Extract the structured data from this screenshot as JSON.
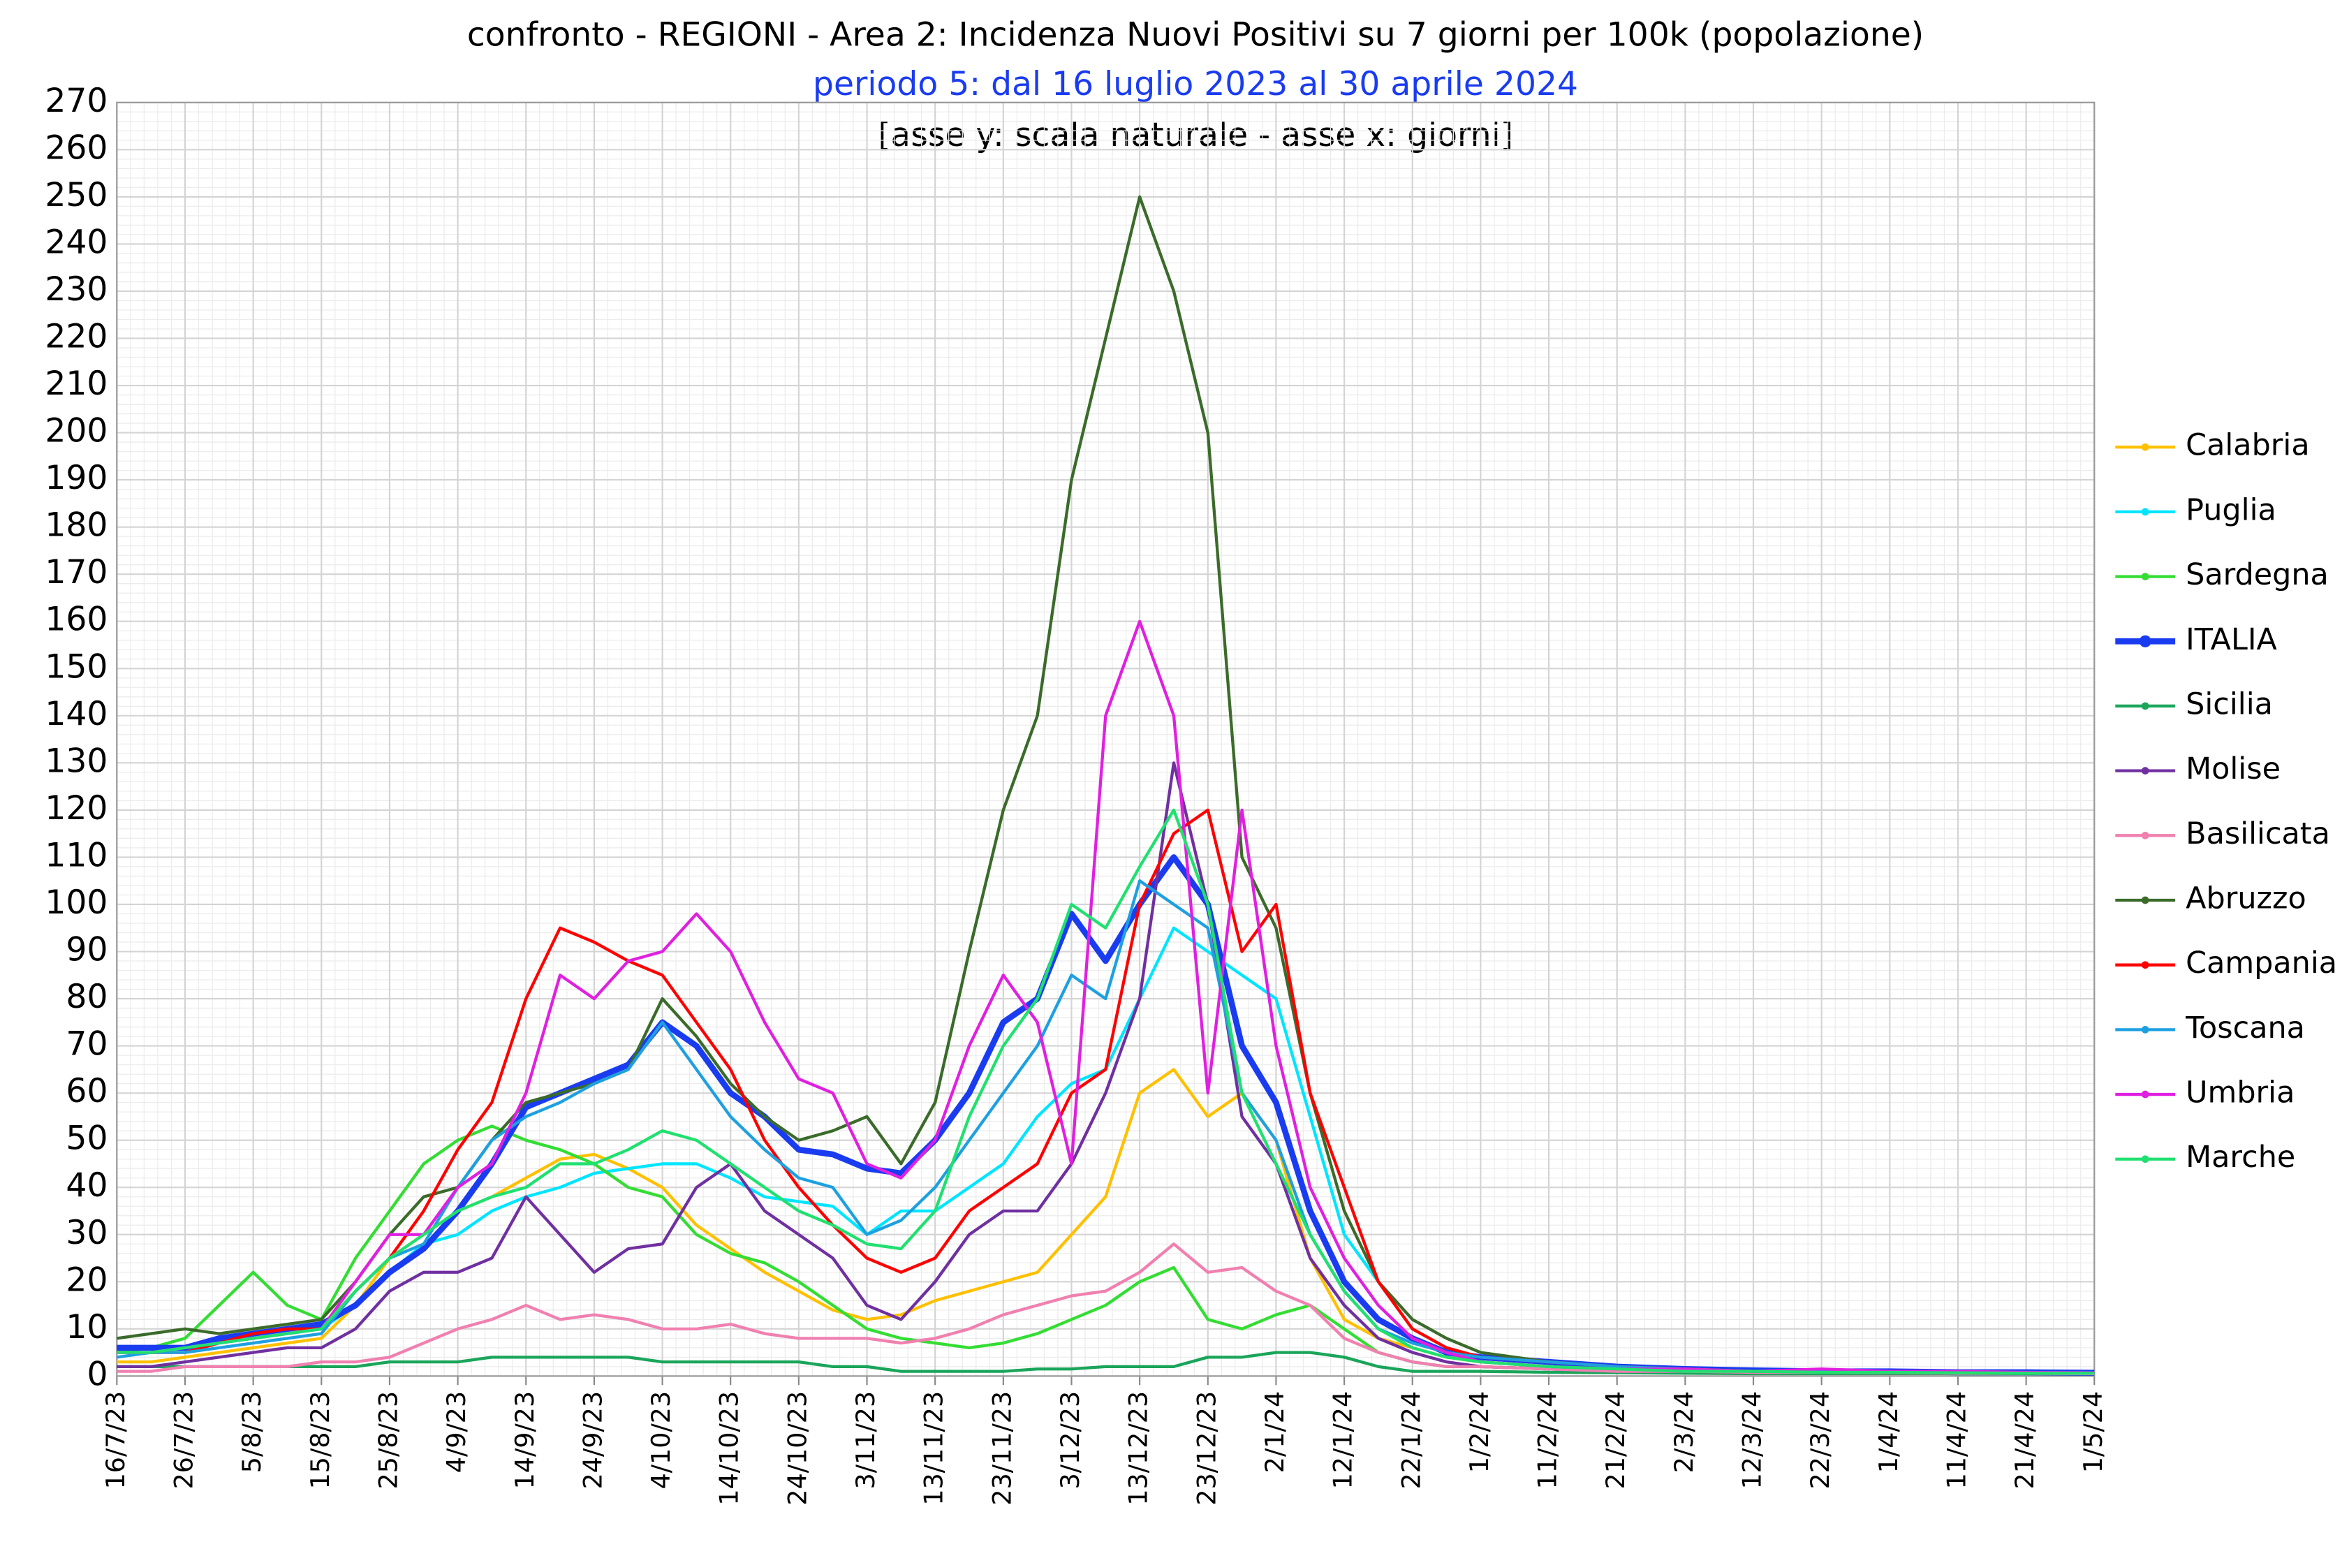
{
  "chart_data": {
    "type": "line",
    "title": "confronto - REGIONI - Area 2: Incidenza Nuovi Positivi su 7 giorni per 100k (popolazione)",
    "subtitle": "periodo 5: dal 16 luglio 2023 al 30 aprile 2024",
    "note": "[asse y: scala naturale - asse x:  giorni]",
    "x": [
      "16/7/23",
      "21/7/23",
      "26/7/23",
      "31/7/23",
      "5/8/23",
      "10/8/23",
      "15/8/23",
      "20/8/23",
      "25/8/23",
      "30/8/23",
      "4/9/23",
      "9/9/23",
      "14/9/23",
      "19/9/23",
      "24/9/23",
      "29/9/23",
      "4/10/23",
      "9/10/23",
      "14/10/23",
      "19/10/23",
      "24/10/23",
      "29/10/23",
      "3/11/23",
      "8/11/23",
      "13/11/23",
      "18/11/23",
      "23/11/23",
      "28/11/23",
      "3/12/23",
      "8/12/23",
      "13/12/23",
      "18/12/23",
      "23/12/23",
      "28/12/23",
      "2/1/24",
      "7/1/24",
      "12/1/24",
      "17/1/24",
      "22/1/24",
      "27/1/24",
      "1/2/24",
      "11/2/24",
      "21/2/24",
      "2/3/24",
      "12/3/24",
      "22/3/24",
      "1/4/24",
      "11/4/24",
      "21/4/24",
      "1/5/24"
    ],
    "xlim": [
      "16/7/23",
      "1/5/24"
    ],
    "xticks": [
      "16/7/23",
      "26/7/23",
      "5/8/23",
      "15/8/23",
      "25/8/23",
      "4/9/23",
      "14/9/23",
      "24/9/23",
      "4/10/23",
      "14/10/23",
      "24/10/23",
      "3/11/23",
      "13/11/23",
      "23/11/23",
      "3/12/23",
      "13/12/23",
      "23/12/23",
      "2/1/24",
      "12/1/24",
      "22/1/24",
      "1/2/24",
      "11/2/24",
      "21/2/24",
      "2/3/24",
      "12/3/24",
      "22/3/24",
      "1/4/24",
      "11/4/24",
      "21/4/24",
      "1/5/24"
    ],
    "ylim": [
      0,
      270
    ],
    "yticks": [
      0,
      10,
      20,
      30,
      40,
      50,
      60,
      70,
      80,
      90,
      100,
      110,
      120,
      130,
      140,
      150,
      160,
      170,
      180,
      190,
      200,
      210,
      220,
      230,
      240,
      250,
      260,
      270
    ],
    "grid": true,
    "legend": "right",
    "series": [
      {
        "name": "Calabria",
        "color": "#ffc000",
        "values": [
          3,
          3,
          4,
          5,
          6,
          7,
          8,
          15,
          25,
          30,
          35,
          38,
          42,
          46,
          47,
          44,
          40,
          32,
          27,
          22,
          18,
          14,
          12,
          13,
          16,
          18,
          20,
          22,
          30,
          38,
          60,
          65,
          55,
          60,
          50,
          25,
          12,
          8,
          6,
          4,
          3,
          2,
          1.5,
          1,
          1,
          0.8,
          0.8,
          0.7,
          0.6,
          0.6
        ]
      },
      {
        "name": "Puglia",
        "color": "#00e5ff",
        "values": [
          5,
          5,
          6,
          7,
          8,
          9,
          10,
          15,
          22,
          28,
          30,
          35,
          38,
          40,
          43,
          44,
          45,
          45,
          42,
          38,
          37,
          36,
          30,
          35,
          35,
          40,
          45,
          55,
          62,
          65,
          80,
          95,
          90,
          85,
          80,
          55,
          30,
          20,
          10,
          6,
          4,
          3,
          2,
          1.5,
          1,
          1,
          0.8,
          0.8,
          0.7,
          0.6
        ]
      },
      {
        "name": "Sardegna",
        "color": "#33dd33",
        "values": [
          5,
          6,
          8,
          15,
          22,
          15,
          12,
          25,
          35,
          45,
          50,
          53,
          50,
          48,
          45,
          40,
          38,
          30,
          26,
          24,
          20,
          15,
          10,
          8,
          7,
          6,
          7,
          9,
          12,
          15,
          20,
          23,
          12,
          10,
          13,
          15,
          10,
          5,
          3,
          2,
          2,
          1.5,
          1,
          1,
          0.8,
          0.8,
          0.7,
          0.6,
          0.6,
          0.5
        ]
      },
      {
        "name": "ITALIA",
        "color": "#1a3cf0",
        "values": [
          6,
          6,
          6,
          8,
          9,
          10,
          11,
          15,
          22,
          27,
          35,
          45,
          57,
          60,
          63,
          66,
          75,
          70,
          60,
          55,
          48,
          47,
          44,
          43,
          50,
          60,
          75,
          80,
          98,
          88,
          100,
          110,
          100,
          70,
          58,
          35,
          20,
          12,
          8,
          5,
          4,
          3,
          2,
          1.5,
          1.2,
          1,
          1,
          0.8,
          0.8,
          0.7
        ]
      },
      {
        "name": "Sicilia",
        "color": "#1aa55a",
        "values": [
          2,
          2,
          2,
          2,
          2,
          2,
          2,
          2,
          3,
          3,
          3,
          4,
          4,
          4,
          4,
          4,
          3,
          3,
          3,
          3,
          3,
          2,
          2,
          1,
          1,
          1,
          1,
          1.5,
          1.5,
          2,
          2,
          2,
          4,
          4,
          5,
          5,
          4,
          2,
          1,
          1,
          1,
          0.8,
          0.7,
          0.6,
          0.5,
          0.5,
          0.5,
          0.5,
          0.5,
          0.5
        ]
      },
      {
        "name": "Molise",
        "color": "#7030a0",
        "values": [
          2,
          2,
          3,
          4,
          5,
          6,
          6,
          10,
          18,
          22,
          22,
          25,
          38,
          30,
          22,
          27,
          28,
          40,
          45,
          35,
          30,
          25,
          15,
          12,
          20,
          30,
          35,
          35,
          45,
          60,
          80,
          130,
          100,
          55,
          45,
          25,
          15,
          8,
          5,
          3,
          2,
          1.5,
          1,
          1,
          0.8,
          0.8,
          0.7,
          0.6,
          0.6,
          0.5
        ]
      },
      {
        "name": "Basilicata",
        "color": "#f080b0",
        "values": [
          1,
          1,
          2,
          2,
          2,
          2,
          3,
          3,
          4,
          7,
          10,
          12,
          15,
          12,
          13,
          12,
          10,
          10,
          11,
          9,
          8,
          8,
          8,
          7,
          8,
          10,
          13,
          15,
          17,
          18,
          22,
          28,
          22,
          23,
          18,
          15,
          8,
          5,
          3,
          2,
          2,
          1.5,
          1,
          1,
          0.8,
          0.8,
          0.7,
          0.6,
          0.6,
          0.5
        ]
      },
      {
        "name": "Abruzzo",
        "color": "#3b6b2a",
        "values": [
          8,
          9,
          10,
          9,
          10,
          11,
          12,
          20,
          30,
          38,
          40,
          50,
          58,
          60,
          62,
          65,
          80,
          72,
          62,
          55,
          50,
          52,
          55,
          45,
          58,
          90,
          120,
          140,
          190,
          220,
          250,
          230,
          200,
          110,
          95,
          60,
          35,
          20,
          12,
          8,
          5,
          3,
          2,
          1.5,
          1,
          1,
          0.8,
          0.8,
          0.7,
          0.6
        ]
      },
      {
        "name": "Campania",
        "color": "#ff0000",
        "values": [
          5,
          5,
          5,
          7,
          9,
          10,
          10,
          18,
          25,
          35,
          48,
          58,
          80,
          95,
          92,
          88,
          85,
          75,
          65,
          50,
          40,
          32,
          25,
          22,
          25,
          35,
          40,
          45,
          60,
          65,
          100,
          115,
          120,
          90,
          100,
          60,
          40,
          20,
          10,
          6,
          4,
          3,
          2,
          1.5,
          1,
          1,
          0.8,
          0.8,
          0.7,
          0.6
        ]
      },
      {
        "name": "Toscana",
        "color": "#1ea0e0",
        "values": [
          4,
          5,
          5,
          6,
          7,
          8,
          9,
          18,
          25,
          28,
          40,
          50,
          55,
          58,
          62,
          65,
          75,
          65,
          55,
          48,
          42,
          40,
          30,
          33,
          40,
          50,
          60,
          70,
          85,
          80,
          105,
          100,
          95,
          60,
          50,
          30,
          18,
          10,
          7,
          5,
          4,
          3,
          2,
          1.5,
          1,
          1,
          1,
          0.8,
          0.8,
          0.7
        ]
      },
      {
        "name": "Umbria",
        "color": "#e020e0",
        "values": [
          5,
          5,
          6,
          7,
          8,
          9,
          10,
          20,
          30,
          30,
          40,
          45,
          60,
          85,
          80,
          88,
          90,
          98,
          90,
          75,
          63,
          60,
          45,
          42,
          50,
          70,
          85,
          75,
          45,
          140,
          160,
          140,
          60,
          120,
          70,
          40,
          25,
          15,
          8,
          5,
          3,
          2,
          1.5,
          1.5,
          1,
          1.5,
          1,
          1,
          0.8,
          0.7
        ]
      },
      {
        "name": "Marche",
        "color": "#20e070",
        "values": [
          5,
          5,
          6,
          7,
          8,
          9,
          10,
          18,
          25,
          30,
          35,
          38,
          40,
          45,
          45,
          48,
          52,
          50,
          45,
          40,
          35,
          32,
          28,
          27,
          35,
          55,
          70,
          80,
          100,
          95,
          108,
          120,
          100,
          60,
          45,
          30,
          18,
          10,
          6,
          4,
          3,
          2,
          1.5,
          1,
          1,
          0.8,
          0.8,
          0.7,
          0.6,
          0.6
        ]
      }
    ]
  }
}
